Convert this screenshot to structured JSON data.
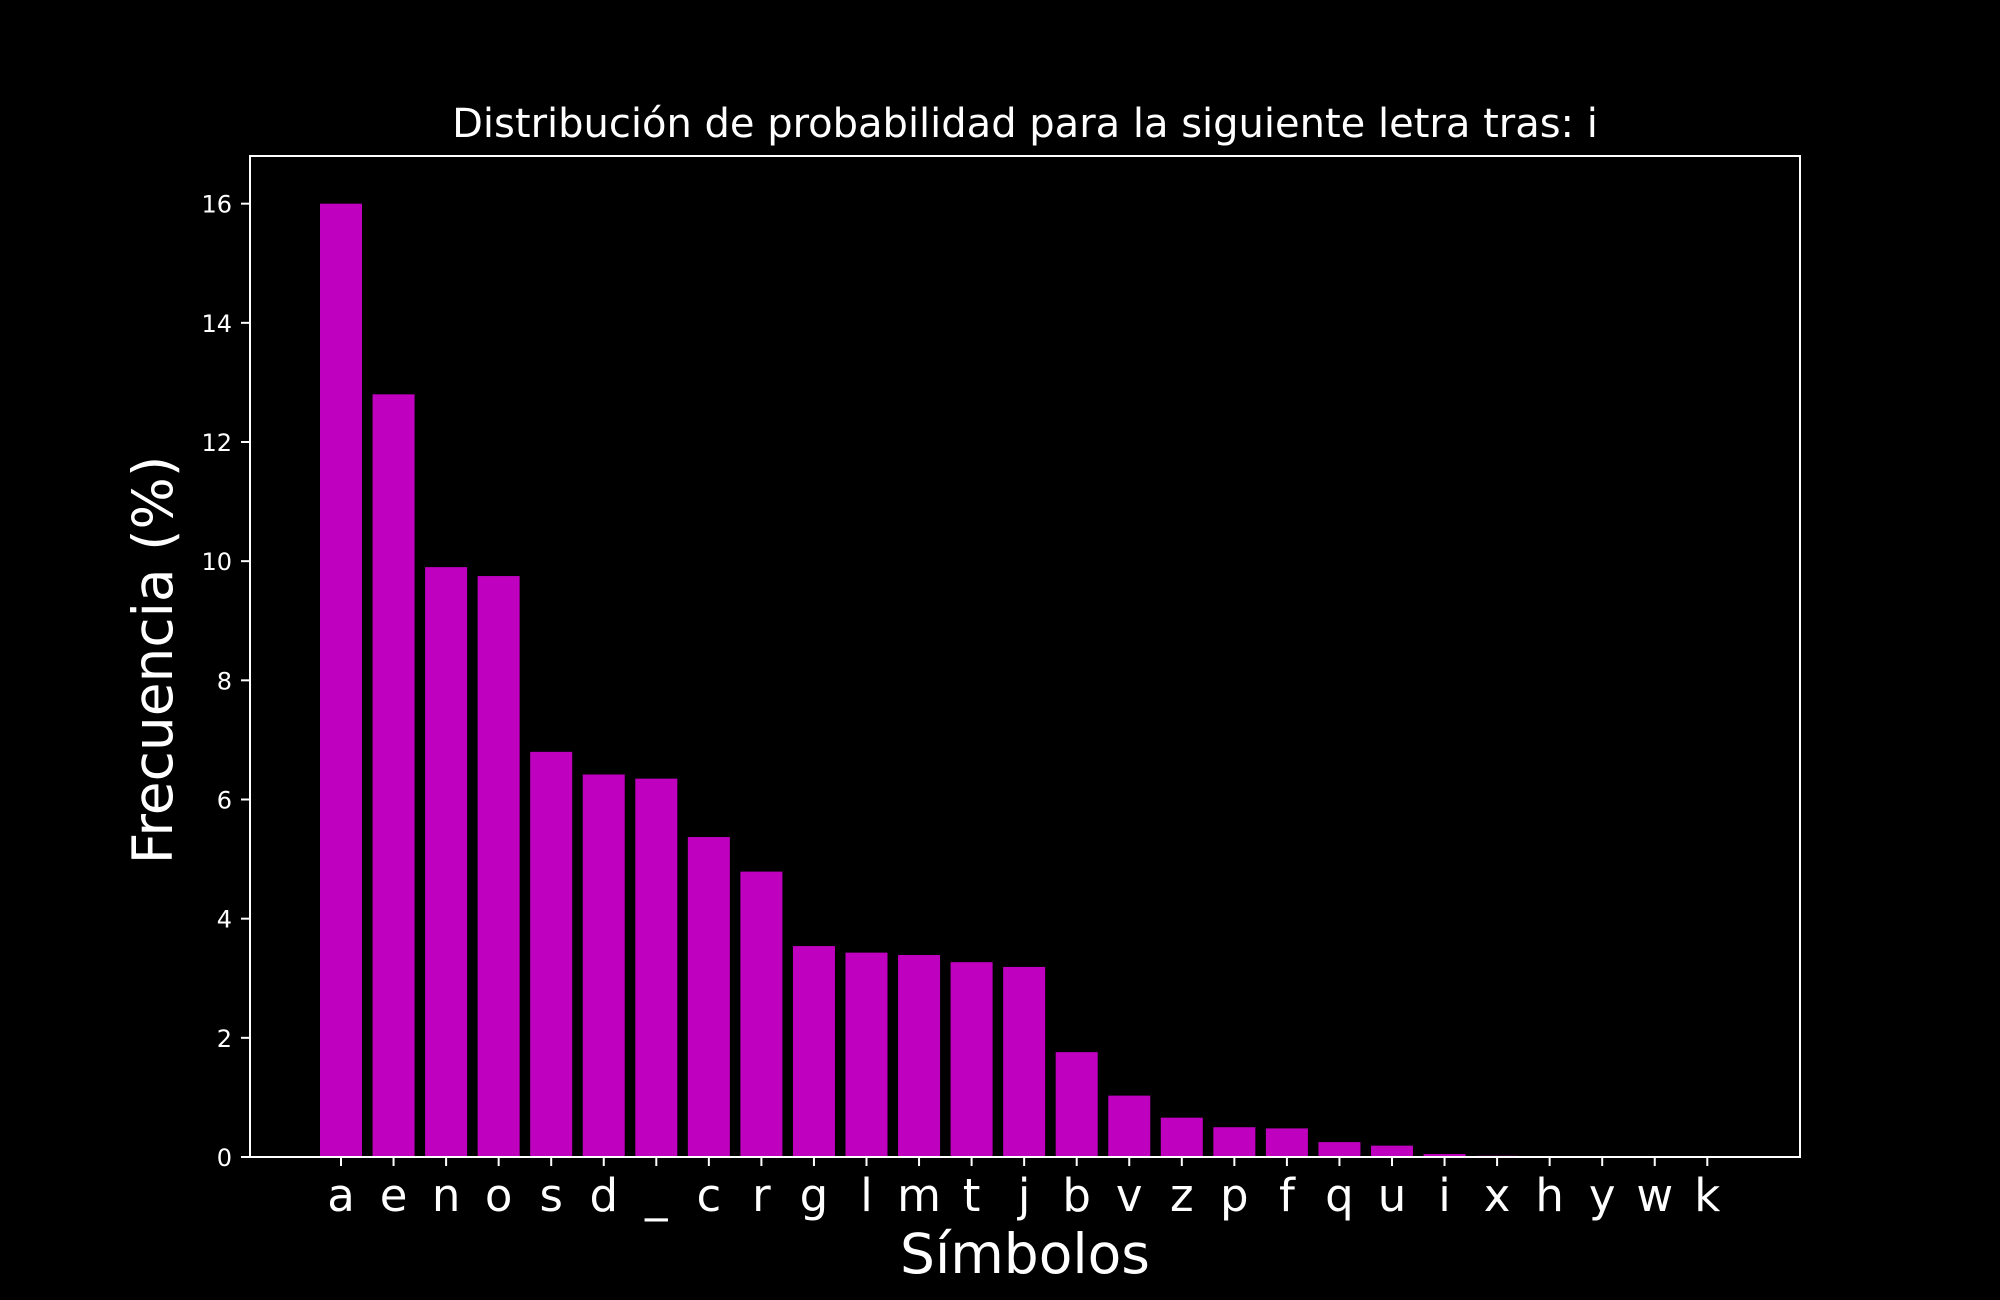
{
  "chart_data": {
    "type": "bar",
    "title": "Distribución de probabilidad para la siguiente letra tras: i",
    "xlabel": "Símbolos",
    "ylabel": "Frecuencia (%)",
    "categories": [
      "a",
      "e",
      "n",
      "o",
      "s",
      "d",
      "_",
      "c",
      "r",
      "g",
      "l",
      "m",
      "t",
      "j",
      "b",
      "v",
      "z",
      "p",
      "f",
      "q",
      "u",
      "i",
      "x",
      "h",
      "y",
      "w",
      "k"
    ],
    "values": [
      16.0,
      12.8,
      9.9,
      9.75,
      6.8,
      6.42,
      6.35,
      5.37,
      4.79,
      3.54,
      3.43,
      3.39,
      3.27,
      3.19,
      1.76,
      1.03,
      0.66,
      0.5,
      0.48,
      0.25,
      0.19,
      0.05,
      0.02,
      0.005,
      0.003,
      0.002,
      0.001
    ],
    "yticks": [
      0,
      2,
      4,
      6,
      8,
      10,
      12,
      14,
      16
    ],
    "ylim": [
      0,
      16.8
    ],
    "grid": false,
    "colors": {
      "background": "#000000",
      "bar": "#bf00bf",
      "axis": "#ffffff",
      "text": "#ffffff"
    }
  }
}
